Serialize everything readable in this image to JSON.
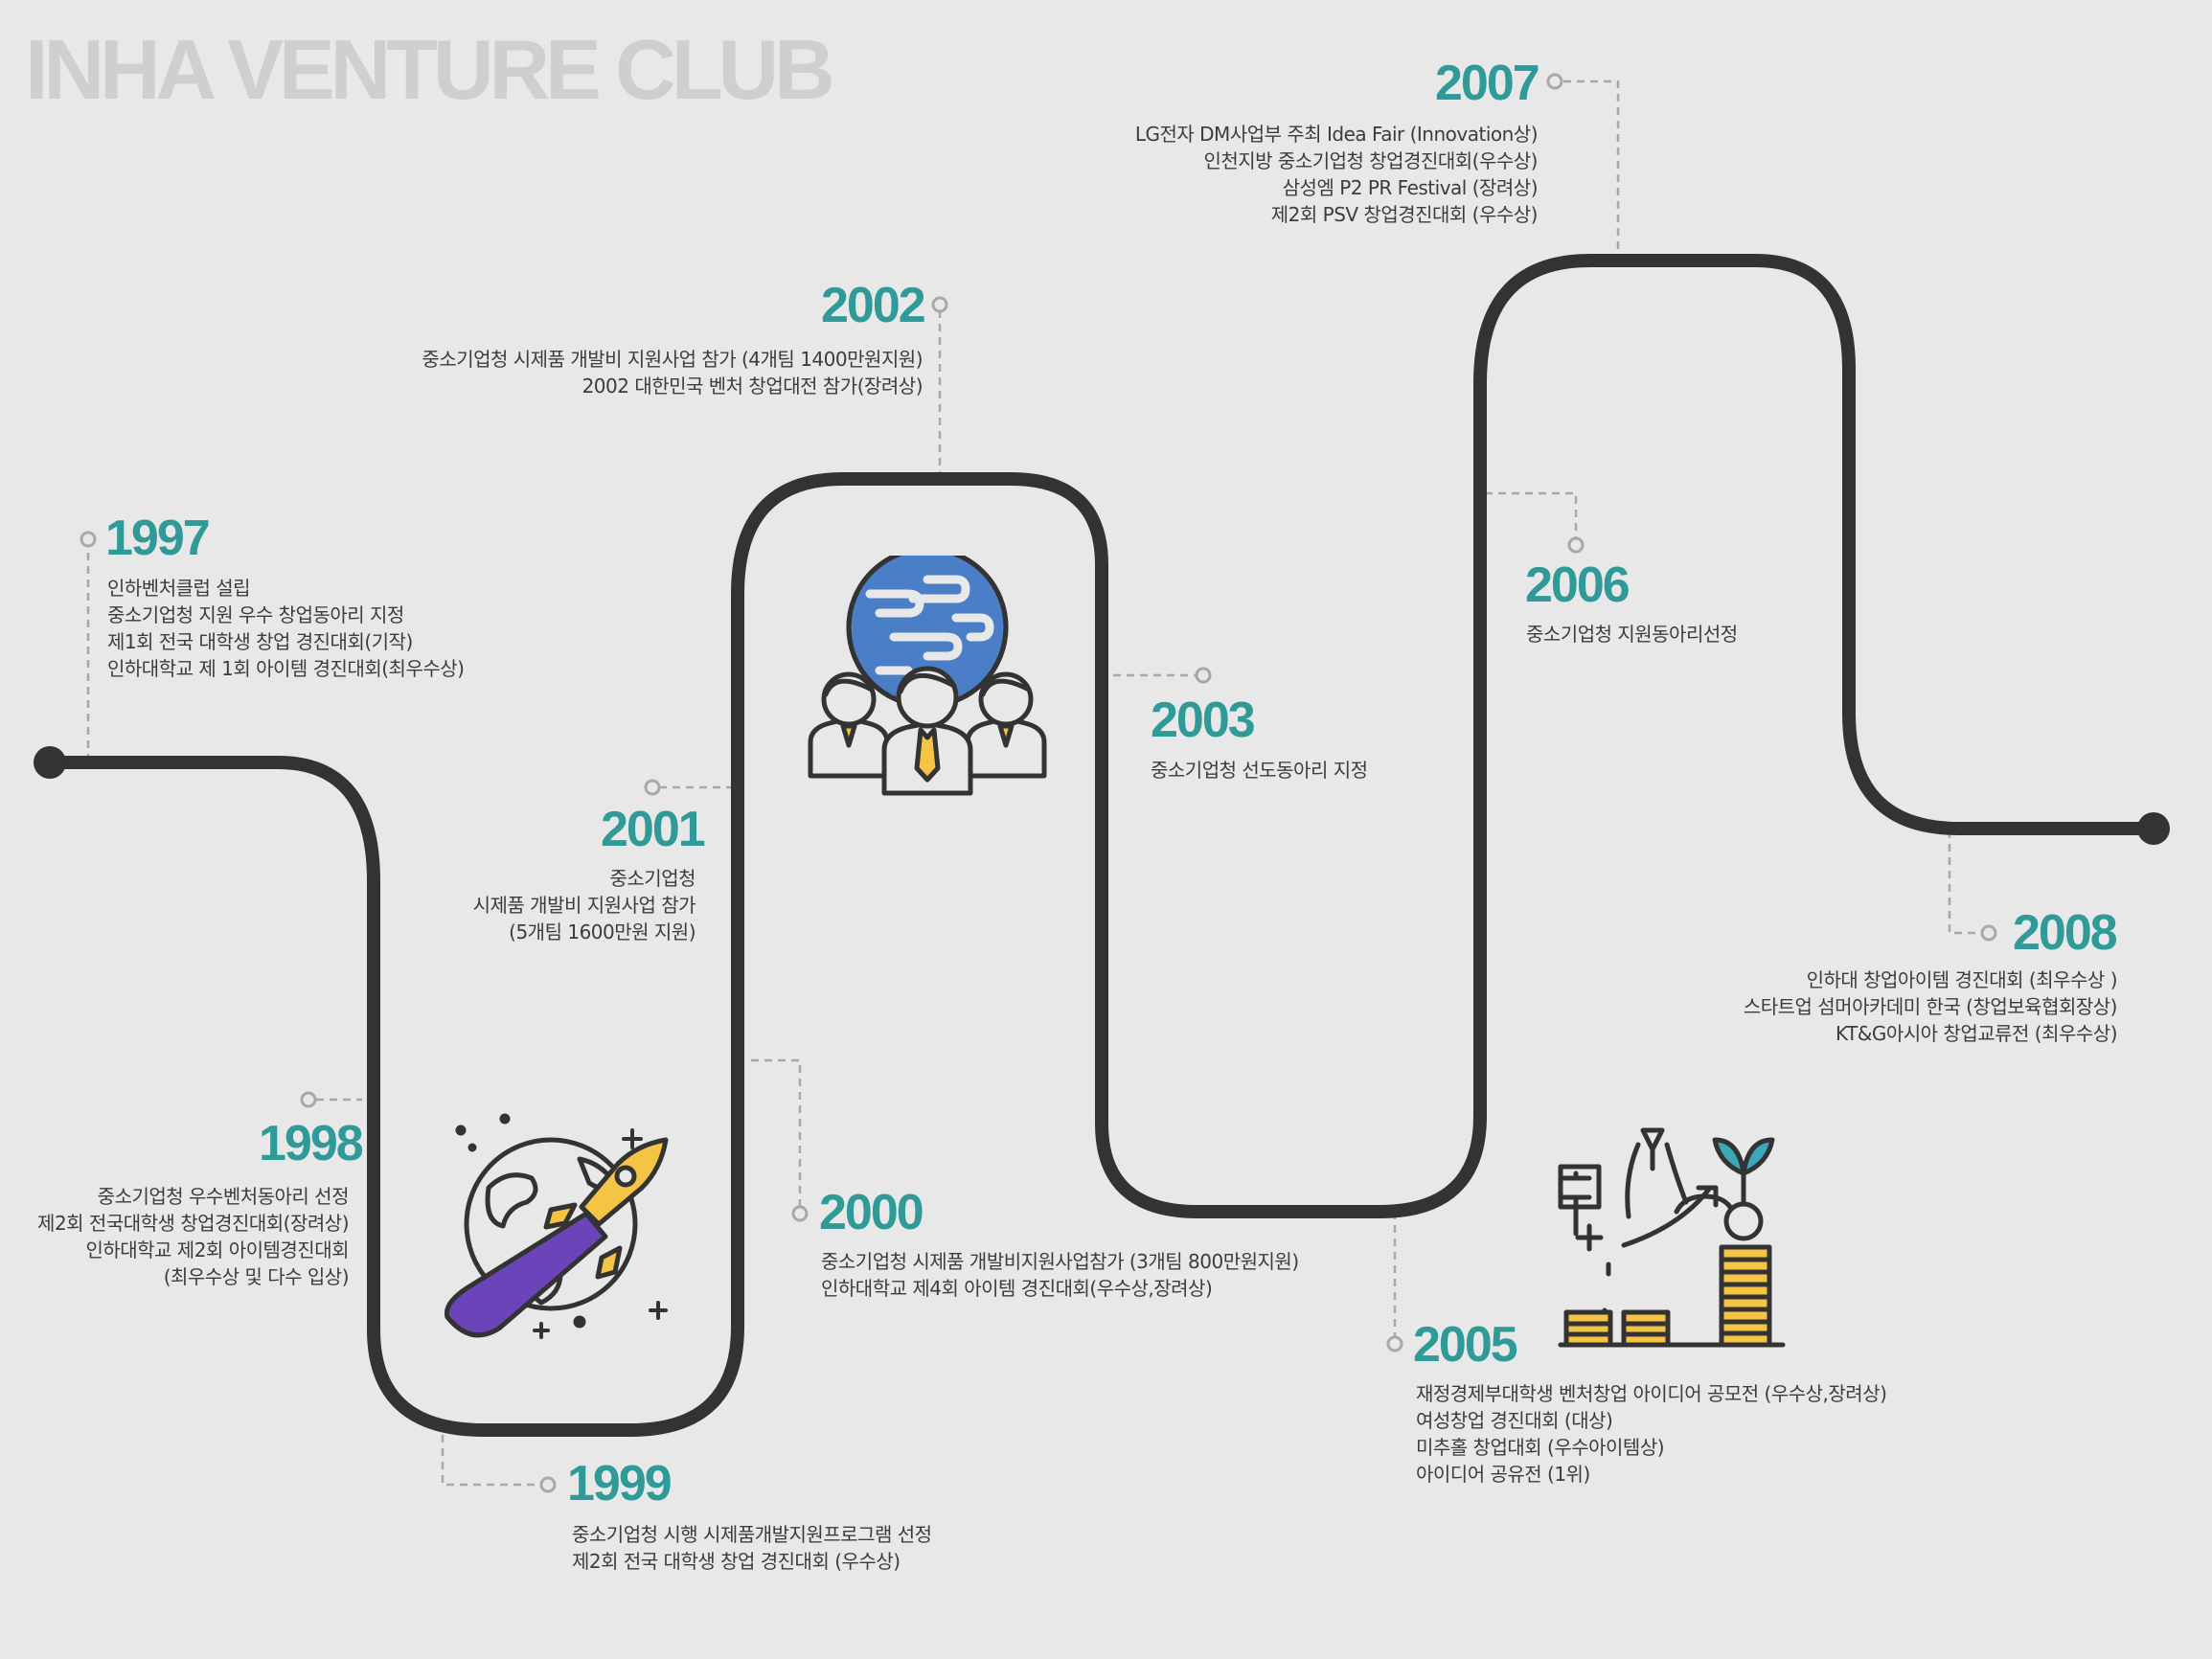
{
  "title": "INHA VENTURE CLUB",
  "colors": {
    "background": "#e8e8e8",
    "track": "#333333",
    "year": "#2f9a97",
    "connector": "#a8a8a8",
    "title": "#cfcfcf",
    "accent_yellow": "#f6c444",
    "accent_blue": "#4a7fc7",
    "accent_purple": "#6a44b8",
    "accent_teal": "#3aa8b8"
  },
  "milestones": [
    {
      "year": "1997",
      "lines": [
        "인하벤처클럽 설립",
        "중소기업청 지원 우수 창업동아리 지정",
        "제1회 전국 대학생 창업 경진대회(기작)",
        "인하대학교 제 1회 아이템 경진대회(최우수상)"
      ]
    },
    {
      "year": "1998",
      "lines": [
        "중소기업청 우수벤처동아리 선정",
        "제2회 전국대학생 창업경진대회(장려상)",
        "인하대학교 제2회 아이템경진대회",
        "(최우수상 및 다수 입상)"
      ]
    },
    {
      "year": "1999",
      "lines": [
        "중소기업청 시행 시제품개발지원프로그램 선정",
        "제2회 전국 대학생 창업 경진대회 (우수상)"
      ]
    },
    {
      "year": "2000",
      "lines": [
        "중소기업청 시제품 개발비지원사업참가 (3개팀 800만원지원)",
        "인하대학교 제4회 아이템 경진대회(우수상,장려상)"
      ]
    },
    {
      "year": "2001",
      "lines": [
        "중소기업청",
        "시제품 개발비 지원사업 참가",
        "(5개팀 1600만원 지원)"
      ]
    },
    {
      "year": "2002",
      "lines": [
        "중소기업청 시제품 개발비 지원사업 참가 (4개팀 1400만원지원)",
        "2002 대한민국 벤처 창업대전 참가(장려상)"
      ]
    },
    {
      "year": "2003",
      "lines": [
        "중소기업청 선도동아리 지정"
      ]
    },
    {
      "year": "2005",
      "lines": [
        "재정경제부대학생 벤처창업 아이디어 공모전  (우수상,장려상)",
        "여성창업 경진대회 (대상)",
        "미추홀 창업대회 (우수아이템상)",
        "아이디어 공유전 (1위)"
      ]
    },
    {
      "year": "2006",
      "lines": [
        "중소기업청 지원동아리선정"
      ]
    },
    {
      "year": "2007",
      "lines": [
        "LG전자 DM사업부 주최 Idea Fair (Innovation상)",
        "인천지방 중소기업청 창업경진대회(우수상)",
        "삼성엠 P2 PR Festival (장려상)",
        "제2회 PSV 창업경진대회 (우수상)"
      ]
    },
    {
      "year": "2008",
      "lines": [
        "인하대 창업아이템 경진대회 (최우수상 )",
        "스타트업 섬머아카데미 한국 (창업보육협회장상)",
        "KT&G아시아 창업교류전 (최우수상)"
      ]
    }
  ],
  "icons": [
    "rocket-globe-icon",
    "globe-team-icon",
    "growth-chart-icon"
  ]
}
